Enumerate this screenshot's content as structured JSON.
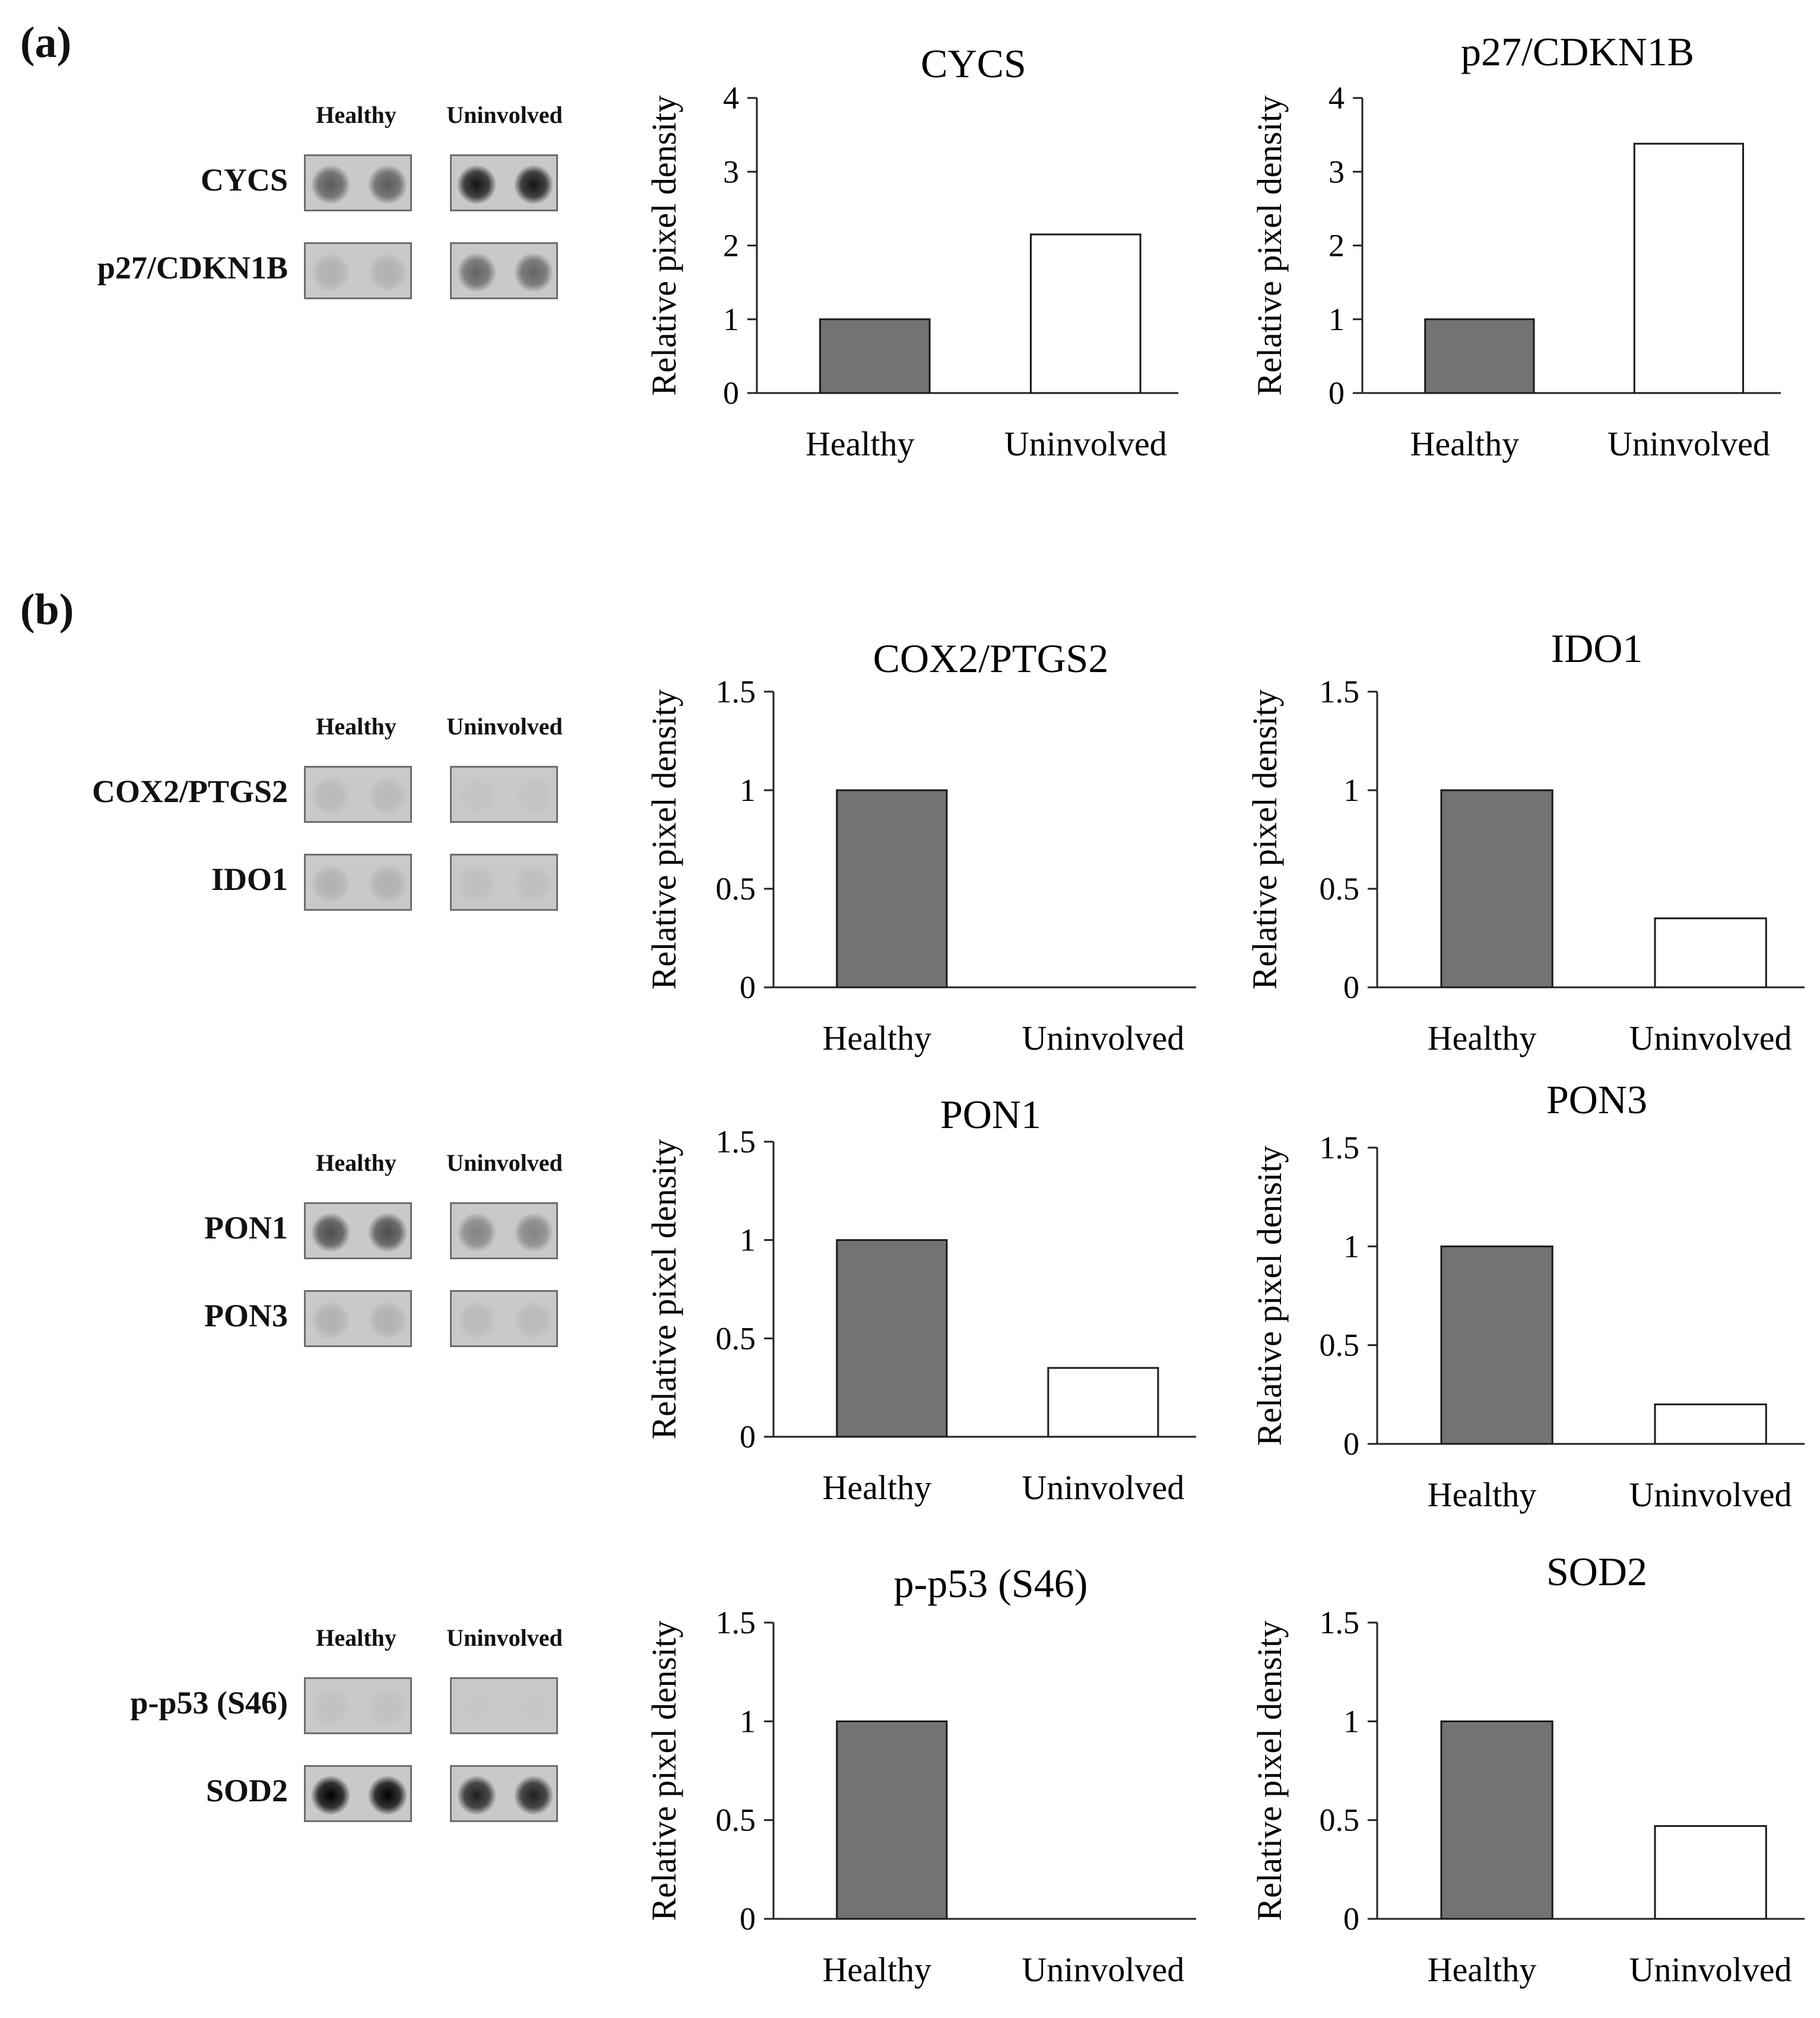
{
  "panels": [
    {
      "label": "(a)"
    },
    {
      "label": "(b)"
    }
  ],
  "blots": [
    {
      "columns": [
        "Healthy",
        "Uninvolved"
      ],
      "rows": [
        {
          "label": "CYCS",
          "intensity": [
            0.55,
            0.9
          ]
        },
        {
          "label": "p27/CDKN1B",
          "intensity": [
            0.12,
            0.5
          ]
        }
      ]
    },
    {
      "columns": [
        "Healthy",
        "Uninvolved"
      ],
      "rows": [
        {
          "label": "COX2/PTGS2",
          "intensity": [
            0.08,
            0.03
          ]
        },
        {
          "label": "IDO1",
          "intensity": [
            0.12,
            0.06
          ]
        }
      ]
    },
    {
      "columns": [
        "Healthy",
        "Uninvolved"
      ],
      "rows": [
        {
          "label": "PON1",
          "intensity": [
            0.62,
            0.35
          ]
        },
        {
          "label": "PON3",
          "intensity": [
            0.12,
            0.08
          ]
        }
      ]
    },
    {
      "columns": [
        "Healthy",
        "Uninvolved"
      ],
      "rows": [
        {
          "label": "p-p53 (S46)",
          "intensity": [
            0.04,
            0.01
          ]
        },
        {
          "label": "SOD2",
          "intensity": [
            1.0,
            0.85
          ]
        }
      ]
    }
  ],
  "colors": {
    "healthy_bar": "#737373",
    "uninvolved_bar": "#ffffff",
    "bar_stroke": "#1a1a1a"
  },
  "chart_data": [
    {
      "type": "bar",
      "title": "CYCS",
      "ylabel": "Relative pixel density",
      "categories": [
        "Healthy",
        "Uninvolved"
      ],
      "values": [
        1.0,
        2.15
      ],
      "ylim": [
        0,
        4
      ],
      "yticks": [
        "0",
        "1",
        "2",
        "3",
        "4"
      ],
      "grid": false
    },
    {
      "type": "bar",
      "title": "p27/CDKN1B",
      "ylabel": "Relative pixel density",
      "categories": [
        "Healthy",
        "Uninvolved"
      ],
      "values": [
        1.0,
        3.38
      ],
      "ylim": [
        0,
        4
      ],
      "yticks": [
        "0",
        "1",
        "2",
        "3",
        "4"
      ],
      "grid": false
    },
    {
      "type": "bar",
      "title": "COX2/PTGS2",
      "ylabel": "Relative pixel density",
      "categories": [
        "Healthy",
        "Uninvolved"
      ],
      "values": [
        1.0,
        0.0
      ],
      "ylim": [
        0,
        1.5
      ],
      "yticks": [
        "0",
        "0.5",
        "1",
        "1.5"
      ],
      "grid": false
    },
    {
      "type": "bar",
      "title": "IDO1",
      "ylabel": "Relative pixel density",
      "categories": [
        "Healthy",
        "Uninvolved"
      ],
      "values": [
        1.0,
        0.35
      ],
      "ylim": [
        0,
        1.5
      ],
      "yticks": [
        "0",
        "0.5",
        "1",
        "1.5"
      ],
      "grid": false
    },
    {
      "type": "bar",
      "title": "PON1",
      "ylabel": "Relative pixel density",
      "categories": [
        "Healthy",
        "Uninvolved"
      ],
      "values": [
        1.0,
        0.35
      ],
      "ylim": [
        0,
        1.5
      ],
      "yticks": [
        "0",
        "0.5",
        "1",
        "1.5"
      ],
      "grid": false
    },
    {
      "type": "bar",
      "title": "PON3",
      "ylabel": "Relative pixel density",
      "categories": [
        "Healthy",
        "Uninvolved"
      ],
      "values": [
        1.0,
        0.2
      ],
      "ylim": [
        0,
        1.5
      ],
      "yticks": [
        "0",
        "0.5",
        "1",
        "1.5"
      ],
      "grid": false
    },
    {
      "type": "bar",
      "title": "p-p53  (S46)",
      "ylabel": "Relative pixel density",
      "categories": [
        "Healthy",
        "Uninvolved"
      ],
      "values": [
        1.0,
        0.0
      ],
      "ylim": [
        0,
        1.5
      ],
      "yticks": [
        "0",
        "0.5",
        "1",
        "1.5"
      ],
      "grid": false
    },
    {
      "type": "bar",
      "title": "SOD2",
      "ylabel": "Relative pixel density",
      "categories": [
        "Healthy",
        "Uninvolved"
      ],
      "values": [
        1.0,
        0.47
      ],
      "ylim": [
        0,
        1.5
      ],
      "yticks": [
        "0",
        "0.5",
        "1",
        "1.5"
      ],
      "grid": false
    }
  ]
}
